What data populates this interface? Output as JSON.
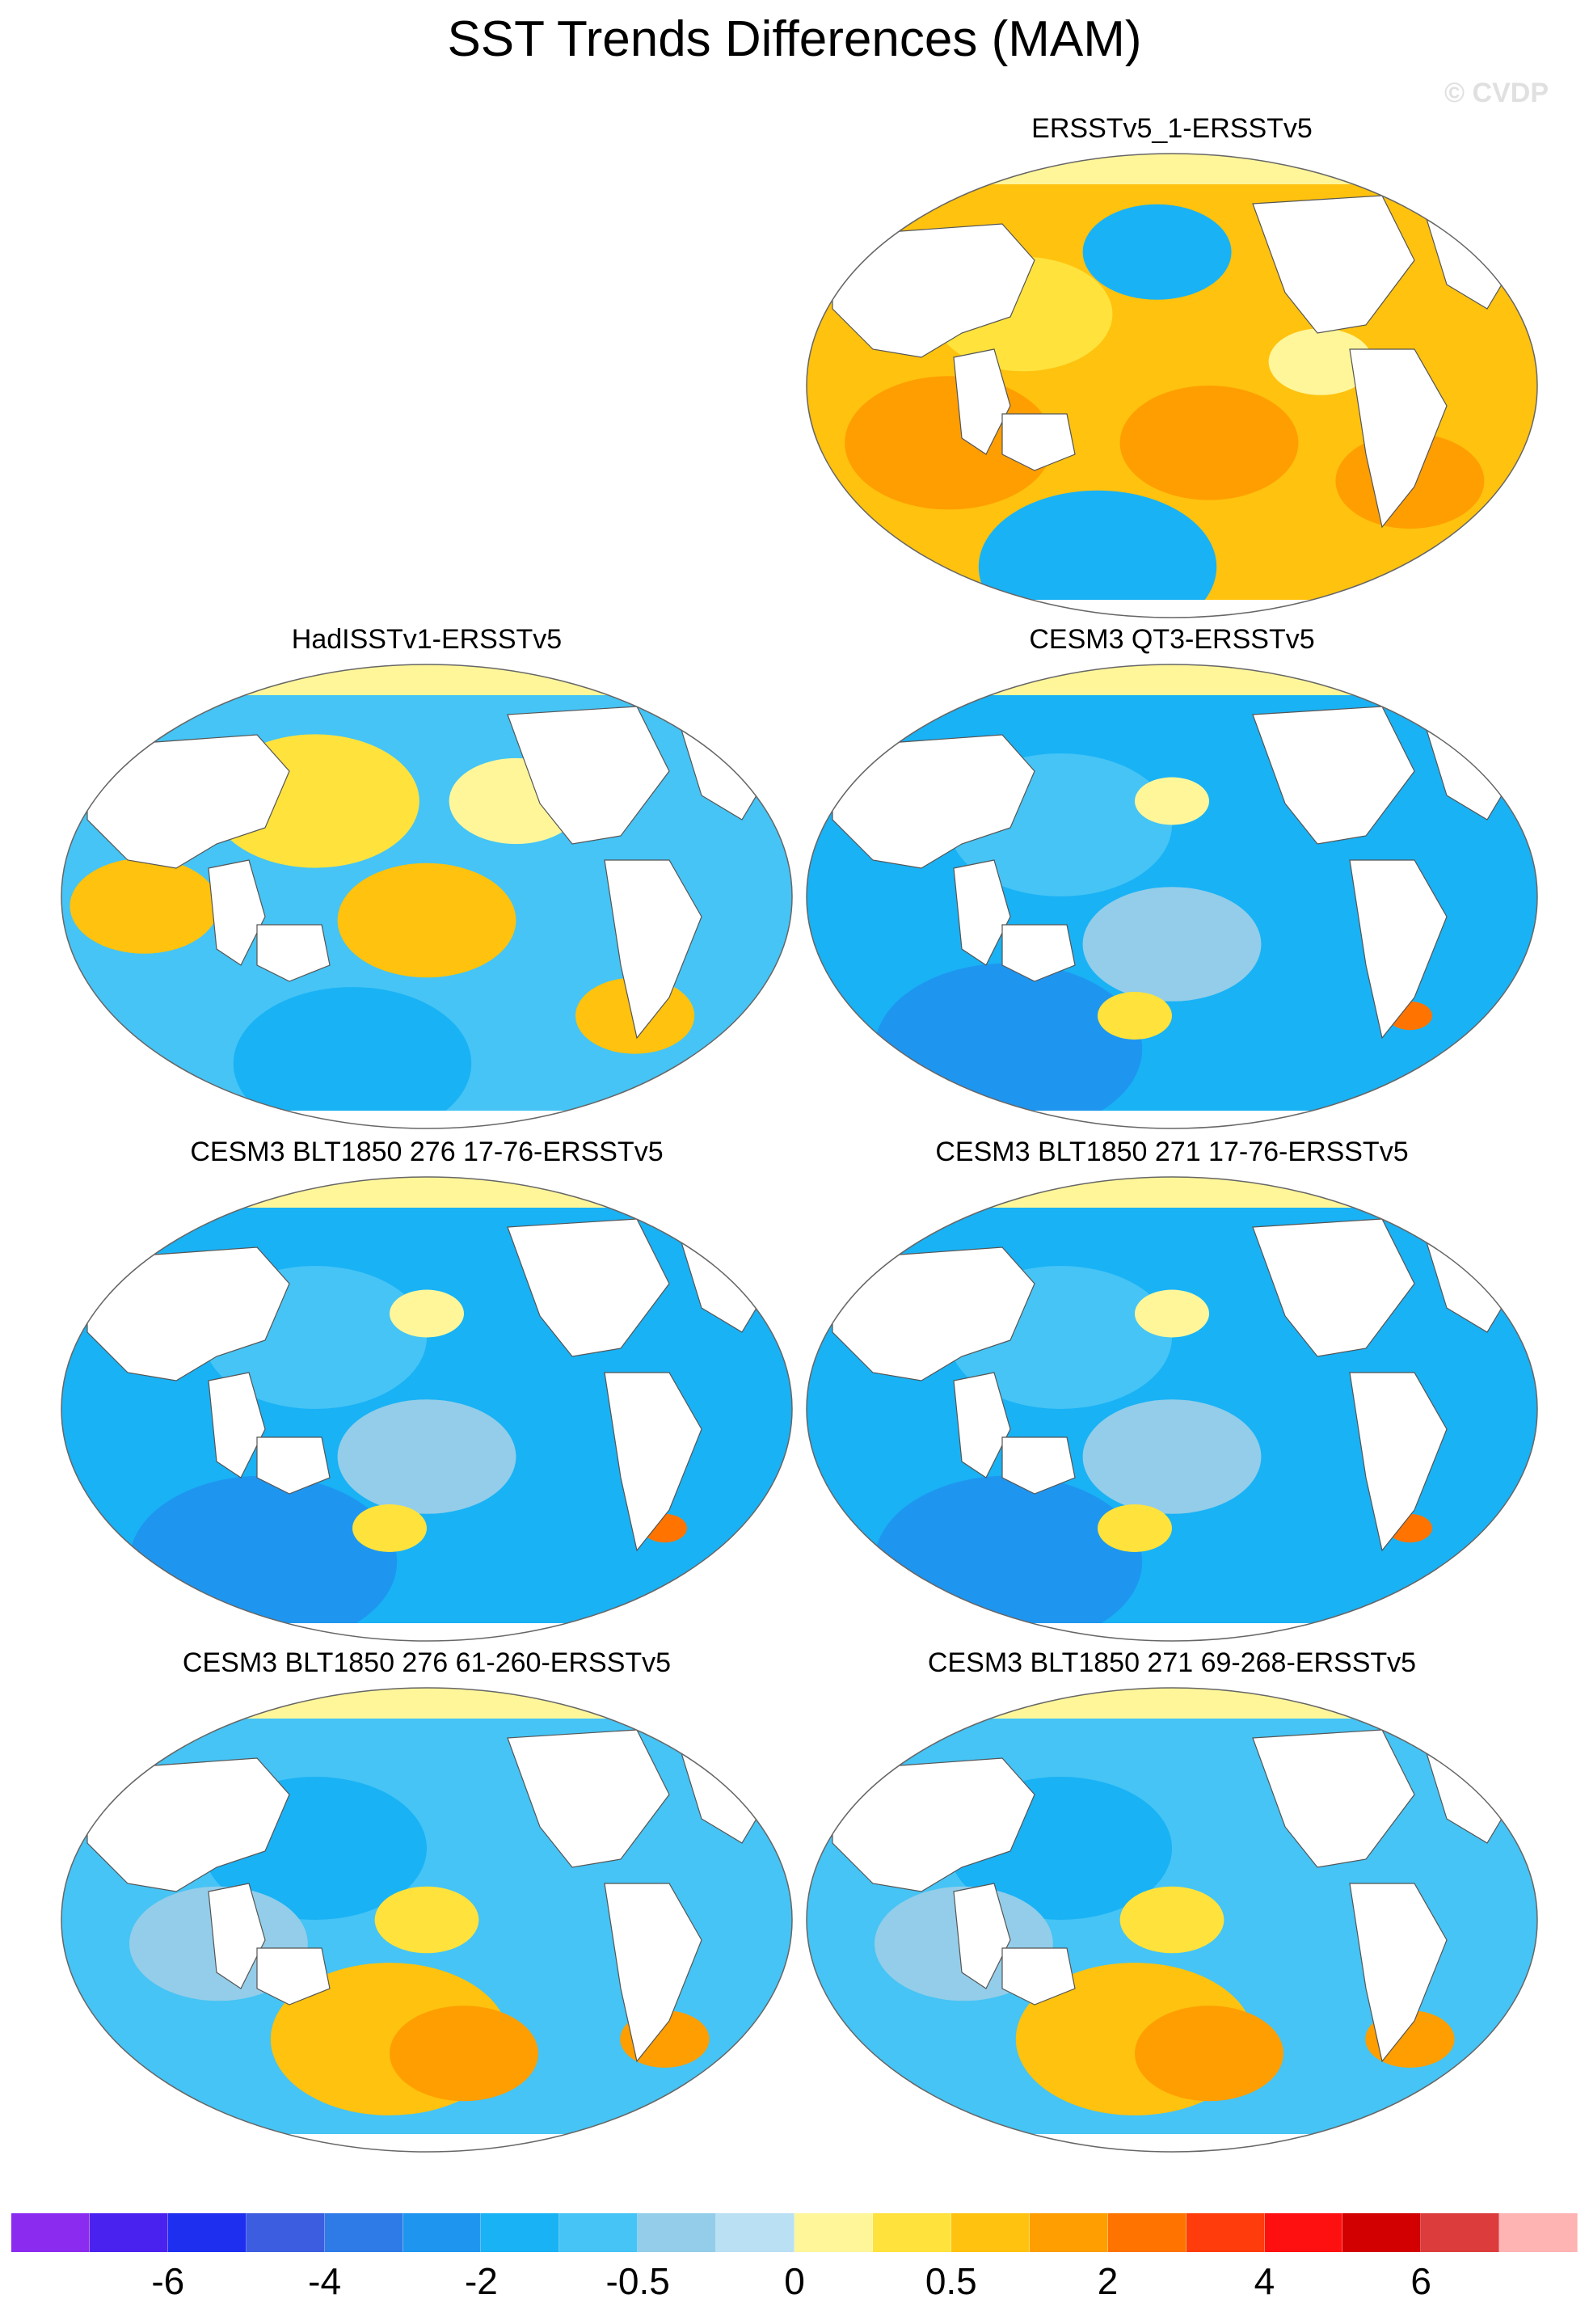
{
  "figure": {
    "title": "SST Trends Differences (MAM)",
    "credit": "© CVDP"
  },
  "panels": [
    {
      "title": "ERSSTv5_1-ERSSTv5",
      "col": 1,
      "row": 0,
      "scheme": "warm"
    },
    {
      "title": "HadISSTv1-ERSSTv5",
      "col": 0,
      "row": 1,
      "scheme": "mixed"
    },
    {
      "title": "CESM3 QT3-ERSSTv5",
      "col": 1,
      "row": 1,
      "scheme": "cool"
    },
    {
      "title": "CESM3 BLT1850 276 17-76-ERSSTv5",
      "col": 0,
      "row": 2,
      "scheme": "cool"
    },
    {
      "title": "CESM3 BLT1850 271 17-76-ERSSTv5",
      "col": 1,
      "row": 2,
      "scheme": "cool"
    },
    {
      "title": "CESM3 BLT1850 276 61-260-ERSSTv5",
      "col": 0,
      "row": 3,
      "scheme": "south-warm"
    },
    {
      "title": "CESM3 BLT1850 271 69-268-ERSSTv5",
      "col": 1,
      "row": 3,
      "scheme": "south-warm"
    }
  ],
  "colorbar": {
    "colors": [
      "#8c2bf0",
      "#4a22f0",
      "#1e2ff0",
      "#3c5ddf",
      "#2e7be8",
      "#1e96f0",
      "#19b2f5",
      "#45c4f5",
      "#93cde9",
      "#b9e0f3",
      "#fff69a",
      "#ffe23c",
      "#ffc20e",
      "#ff9e00",
      "#ff7400",
      "#ff3c0c",
      "#ff1010",
      "#d20000",
      "#dc3c3c",
      "#ffb4b4"
    ],
    "labels": [
      {
        "text": "-6",
        "index": 2
      },
      {
        "text": "-4",
        "index": 4
      },
      {
        "text": "-2",
        "index": 6
      },
      {
        "text": "-0.5",
        "index": 8
      },
      {
        "text": "0",
        "index": 10
      },
      {
        "text": "0.5",
        "index": 12
      },
      {
        "text": "2",
        "index": 14
      },
      {
        "text": "4",
        "index": 16
      },
      {
        "text": "6",
        "index": 18
      }
    ]
  }
}
